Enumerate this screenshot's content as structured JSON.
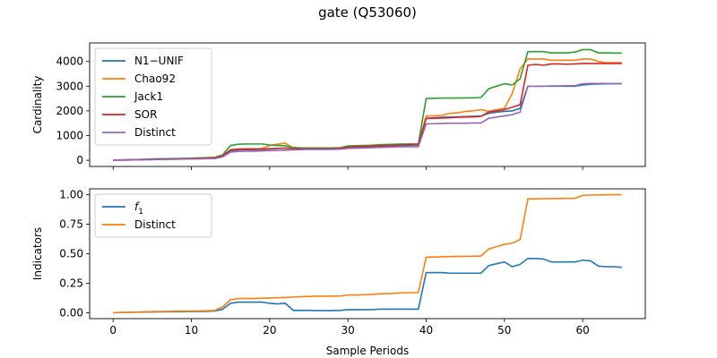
{
  "figure": {
    "title": "gate (Q53060)",
    "xlabel": "Sample Periods"
  },
  "colors": {
    "blue": "#1f77b4",
    "orange": "#ff7f0e",
    "green": "#2ca02c",
    "red": "#d62728",
    "purple": "#9467bd"
  },
  "chart_data": [
    {
      "type": "line",
      "title": "gate (Q53060)",
      "xlabel": "",
      "ylabel": "Cardinality",
      "xlim": [
        -3,
        68
      ],
      "ylim": [
        -250,
        4750
      ],
      "xticks": [
        0,
        10,
        20,
        30,
        40,
        50,
        60
      ],
      "xticklabels_visible": false,
      "yticks": [
        0,
        1000,
        2000,
        3000,
        4000
      ],
      "yticklabels": [
        "0",
        "1000",
        "2000",
        "3000",
        "4000"
      ],
      "grid": false,
      "legend": "top-left",
      "x": [
        0,
        1,
        2,
        3,
        4,
        5,
        6,
        7,
        8,
        9,
        10,
        11,
        12,
        13,
        14,
        15,
        16,
        17,
        18,
        19,
        20,
        21,
        22,
        23,
        24,
        25,
        26,
        27,
        28,
        29,
        30,
        31,
        32,
        33,
        34,
        35,
        36,
        37,
        38,
        39,
        40,
        41,
        42,
        43,
        44,
        45,
        46,
        47,
        48,
        49,
        50,
        51,
        52,
        53,
        54,
        55,
        56,
        57,
        58,
        59,
        60,
        61,
        62,
        63,
        64,
        65
      ],
      "series": [
        {
          "name": "N1−UNIF",
          "color": "#1f77b4",
          "values": [
            5,
            8,
            12,
            18,
            25,
            30,
            38,
            42,
            45,
            50,
            58,
            62,
            68,
            75,
            150,
            380,
            420,
            430,
            430,
            440,
            460,
            480,
            490,
            480,
            480,
            480,
            480,
            480,
            480,
            490,
            530,
            540,
            550,
            560,
            570,
            580,
            590,
            600,
            610,
            620,
            1700,
            1720,
            1740,
            1750,
            1760,
            1770,
            1780,
            1790,
            1900,
            1950,
            1980,
            2000,
            2100,
            3000,
            3000,
            3000,
            3000,
            3000,
            3000,
            3000,
            3050,
            3080,
            3090,
            3100,
            3100,
            3100
          ]
        },
        {
          "name": "Chao92",
          "color": "#ff7f0e",
          "values": [
            10,
            15,
            20,
            30,
            40,
            50,
            60,
            65,
            70,
            75,
            85,
            95,
            105,
            120,
            200,
            430,
            460,
            470,
            470,
            470,
            600,
            650,
            700,
            500,
            490,
            490,
            490,
            490,
            490,
            500,
            560,
            570,
            580,
            590,
            610,
            620,
            630,
            640,
            650,
            660,
            1790,
            1800,
            1820,
            1900,
            1920,
            1980,
            2000,
            2050,
            1980,
            2050,
            2100,
            2700,
            3700,
            4100,
            4100,
            4100,
            4050,
            4050,
            4050,
            4050,
            4100,
            4100,
            4000,
            3950,
            3950,
            3950
          ]
        },
        {
          "name": "Jack1",
          "color": "#2ca02c",
          "values": [
            10,
            15,
            20,
            30,
            40,
            50,
            60,
            65,
            70,
            75,
            85,
            95,
            105,
            120,
            220,
            600,
            650,
            660,
            660,
            660,
            620,
            600,
            590,
            520,
            500,
            500,
            500,
            500,
            500,
            510,
            580,
            590,
            600,
            610,
            630,
            640,
            650,
            660,
            660,
            660,
            2500,
            2510,
            2520,
            2520,
            2520,
            2525,
            2530,
            2540,
            2900,
            3000,
            3100,
            3050,
            3300,
            4400,
            4400,
            4400,
            4350,
            4350,
            4350,
            4380,
            4480,
            4480,
            4350,
            4350,
            4340,
            4340
          ]
        },
        {
          "name": "SOR",
          "color": "#d62728",
          "values": [
            8,
            12,
            18,
            25,
            32,
            40,
            48,
            54,
            58,
            62,
            72,
            80,
            90,
            100,
            180,
            420,
            450,
            450,
            450,
            460,
            470,
            480,
            490,
            470,
            470,
            470,
            470,
            470,
            470,
            480,
            540,
            550,
            560,
            570,
            590,
            600,
            610,
            620,
            630,
            640,
            1690,
            1700,
            1710,
            1720,
            1740,
            1750,
            1760,
            1780,
            1960,
            2000,
            2050,
            2150,
            2250,
            3850,
            3880,
            3850,
            3900,
            3900,
            3890,
            3900,
            3920,
            3920,
            3920,
            3920,
            3920,
            3920
          ]
        },
        {
          "name": "Distinct",
          "color": "#9467bd",
          "values": [
            5,
            8,
            12,
            18,
            25,
            30,
            38,
            42,
            45,
            50,
            58,
            62,
            68,
            75,
            140,
            330,
            360,
            370,
            370,
            380,
            390,
            400,
            410,
            420,
            430,
            440,
            440,
            440,
            440,
            450,
            480,
            490,
            500,
            510,
            520,
            530,
            540,
            550,
            550,
            550,
            1470,
            1480,
            1490,
            1500,
            1500,
            1500,
            1510,
            1510,
            1700,
            1750,
            1800,
            1850,
            1950,
            3000,
            3000,
            3000,
            3010,
            3010,
            3020,
            3020,
            3100,
            3110,
            3110,
            3110,
            3110,
            3110
          ]
        }
      ]
    },
    {
      "type": "line",
      "title": "",
      "xlabel": "Sample Periods",
      "ylabel": "Indicators",
      "xlim": [
        -3,
        68
      ],
      "ylim": [
        -0.05,
        1.05
      ],
      "xticks": [
        0,
        10,
        20,
        30,
        40,
        50,
        60
      ],
      "xticklabels": [
        "0",
        "10",
        "20",
        "30",
        "40",
        "50",
        "60"
      ],
      "yticks": [
        0.0,
        0.25,
        0.5,
        0.75,
        1.0
      ],
      "yticklabels": [
        "0.00",
        "0.25",
        "0.50",
        "0.75",
        "1.00"
      ],
      "grid": false,
      "legend": "top-left",
      "x": [
        0,
        1,
        2,
        3,
        4,
        5,
        6,
        7,
        8,
        9,
        10,
        11,
        12,
        13,
        14,
        15,
        16,
        17,
        18,
        19,
        20,
        21,
        22,
        23,
        24,
        25,
        26,
        27,
        28,
        29,
        30,
        31,
        32,
        33,
        34,
        35,
        36,
        37,
        38,
        39,
        40,
        41,
        42,
        43,
        44,
        45,
        46,
        47,
        48,
        49,
        50,
        51,
        52,
        53,
        54,
        55,
        56,
        57,
        58,
        59,
        60,
        61,
        62,
        63,
        64,
        65
      ],
      "series": [
        {
          "name": "f",
          "name_subscript": "1",
          "color": "#1f77b4",
          "values": [
            0.0,
            0.002,
            0.003,
            0.004,
            0.005,
            0.006,
            0.007,
            0.008,
            0.008,
            0.009,
            0.01,
            0.01,
            0.012,
            0.015,
            0.03,
            0.08,
            0.09,
            0.09,
            0.09,
            0.09,
            0.08,
            0.075,
            0.08,
            0.02,
            0.02,
            0.02,
            0.018,
            0.018,
            0.018,
            0.02,
            0.025,
            0.025,
            0.025,
            0.026,
            0.03,
            0.03,
            0.03,
            0.03,
            0.03,
            0.03,
            0.34,
            0.34,
            0.34,
            0.335,
            0.335,
            0.335,
            0.335,
            0.335,
            0.4,
            0.415,
            0.43,
            0.39,
            0.41,
            0.46,
            0.46,
            0.455,
            0.43,
            0.43,
            0.43,
            0.43,
            0.445,
            0.44,
            0.395,
            0.39,
            0.39,
            0.385
          ]
        },
        {
          "name": "Distinct",
          "color": "#ff7f0e",
          "values": [
            0.0,
            0.002,
            0.004,
            0.006,
            0.008,
            0.009,
            0.01,
            0.011,
            0.012,
            0.013,
            0.014,
            0.015,
            0.017,
            0.02,
            0.05,
            0.11,
            0.12,
            0.12,
            0.12,
            0.122,
            0.125,
            0.128,
            0.13,
            0.133,
            0.135,
            0.138,
            0.14,
            0.14,
            0.14,
            0.142,
            0.15,
            0.15,
            0.152,
            0.155,
            0.16,
            0.162,
            0.165,
            0.168,
            0.17,
            0.17,
            0.47,
            0.472,
            0.474,
            0.476,
            0.478,
            0.478,
            0.48,
            0.48,
            0.54,
            0.56,
            0.58,
            0.59,
            0.62,
            0.965,
            0.965,
            0.967,
            0.967,
            0.968,
            0.969,
            0.97,
            0.995,
            0.997,
            0.998,
            0.999,
            1.0,
            1.0
          ]
        }
      ]
    }
  ]
}
